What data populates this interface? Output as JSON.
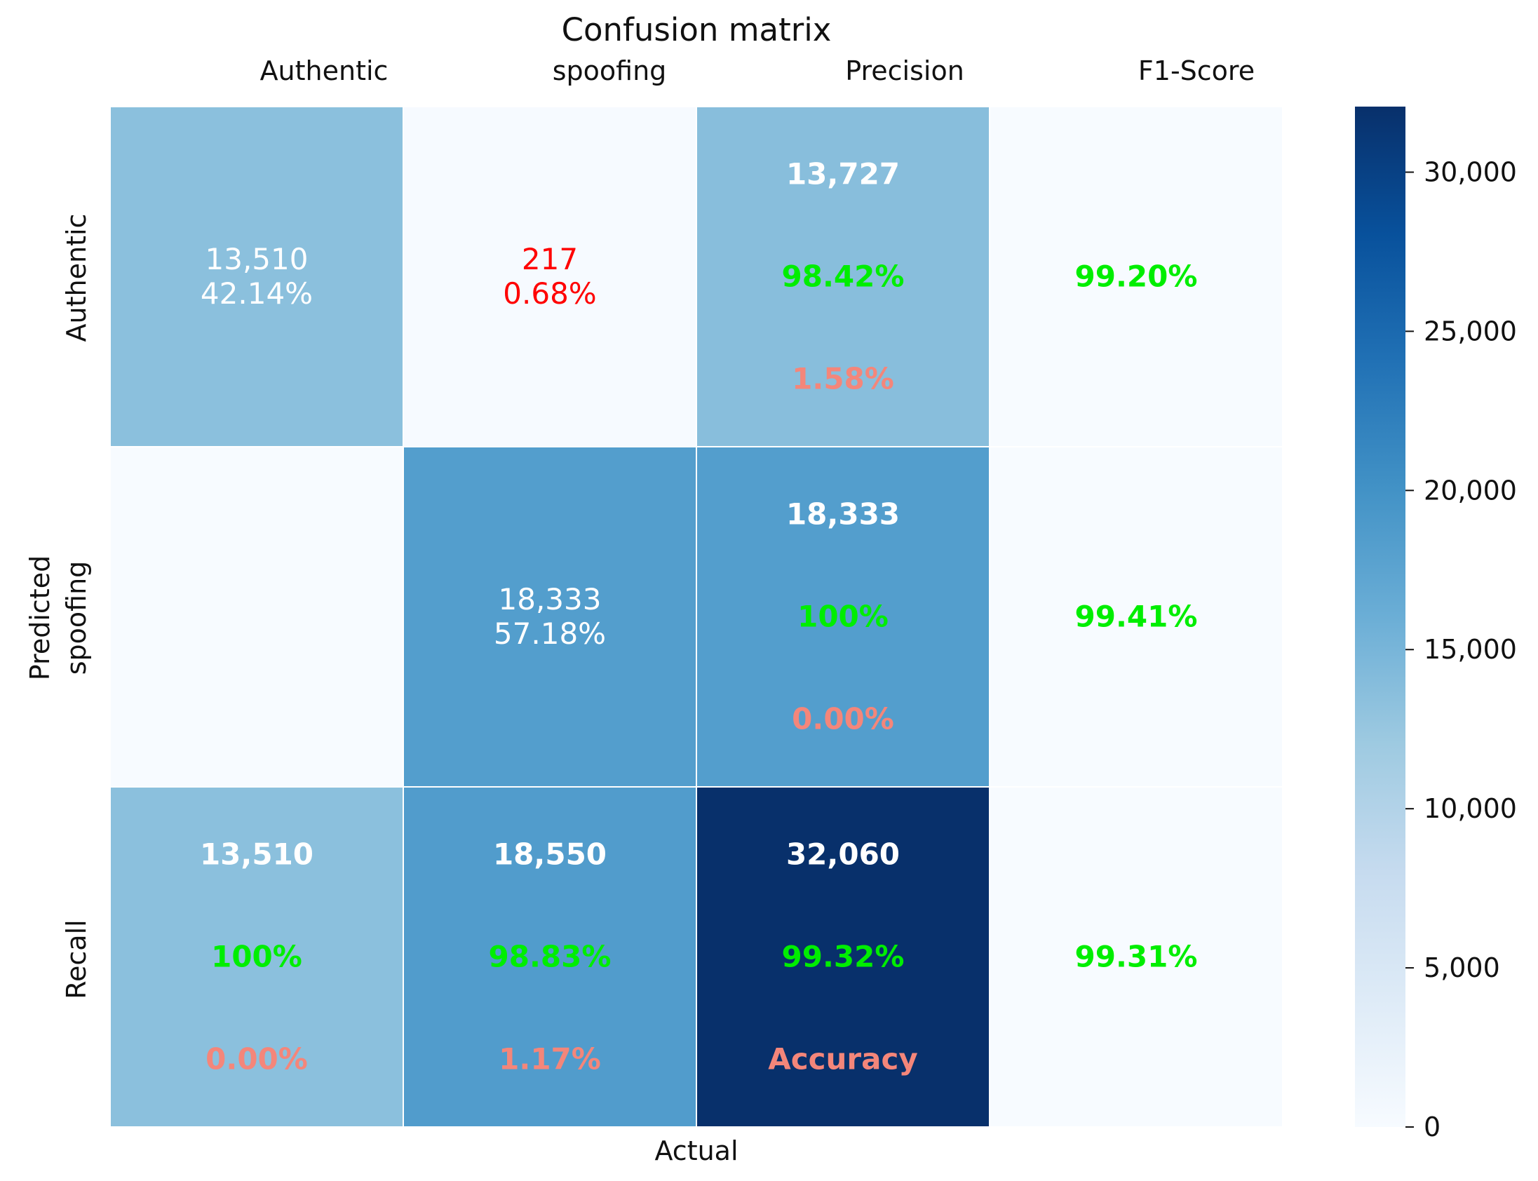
{
  "chart_data": {
    "type": "heatmap",
    "title": "Confusion matrix",
    "xlabel": "Actual",
    "ylabel": "Predicted",
    "column_labels": [
      "Authentic",
      "spoofing",
      "Precision",
      "F1-Score"
    ],
    "row_labels": [
      "Authentic",
      "spoofing",
      "Recall"
    ],
    "cells": [
      [
        {
          "value": 13510,
          "lines": [
            {
              "text": "13,510",
              "style": "plain"
            },
            {
              "text": "42.14%",
              "style": "plain"
            }
          ]
        },
        {
          "value": 217,
          "lines": [
            {
              "text": "217",
              "style": "red"
            },
            {
              "text": "0.68%",
              "style": "red"
            }
          ]
        },
        {
          "value": 13727,
          "lines": [
            {
              "text": "13,727",
              "style": "bold-white"
            },
            {
              "text": "98.42%",
              "style": "bold-green"
            },
            {
              "text": "1.58%",
              "style": "bold-salmon"
            }
          ]
        },
        {
          "value": 0,
          "lines": [
            {
              "text": "99.20%",
              "style": "bold-green"
            }
          ]
        }
      ],
      [
        {
          "value": 0,
          "lines": []
        },
        {
          "value": 18333,
          "lines": [
            {
              "text": "18,333",
              "style": "plain"
            },
            {
              "text": "57.18%",
              "style": "plain"
            }
          ]
        },
        {
          "value": 18333,
          "lines": [
            {
              "text": "18,333",
              "style": "bold-white"
            },
            {
              "text": "100%",
              "style": "bold-green"
            },
            {
              "text": "0.00%",
              "style": "bold-salmon"
            }
          ]
        },
        {
          "value": 0,
          "lines": [
            {
              "text": "99.41%",
              "style": "bold-green"
            }
          ]
        }
      ],
      [
        {
          "value": 13510,
          "lines": [
            {
              "text": "13,510",
              "style": "bold-white"
            },
            {
              "text": "100%",
              "style": "bold-green"
            },
            {
              "text": "0.00%",
              "style": "bold-salmon"
            }
          ]
        },
        {
          "value": 18550,
          "lines": [
            {
              "text": "18,550",
              "style": "bold-white"
            },
            {
              "text": "98.83%",
              "style": "bold-green"
            },
            {
              "text": "1.17%",
              "style": "bold-salmon"
            }
          ]
        },
        {
          "value": 32060,
          "lines": [
            {
              "text": "32,060",
              "style": "bold-white"
            },
            {
              "text": "99.32%",
              "style": "bold-green"
            },
            {
              "text": "Accuracy",
              "style": "bold-salmon"
            }
          ]
        },
        {
          "value": 0,
          "lines": [
            {
              "text": "99.31%",
              "style": "bold-green"
            }
          ]
        }
      ]
    ],
    "colorbar": {
      "min": 0,
      "max": 32060,
      "ticks": [
        0,
        5000,
        10000,
        15000,
        20000,
        25000,
        30000
      ],
      "tick_labels": [
        "0",
        "5,000",
        "10,000",
        "15,000",
        "20,000",
        "25,000",
        "30,000"
      ]
    },
    "colors": {
      "plain": "#ffffff",
      "red": "#ff0000",
      "bold-white": "#ffffff",
      "bold-green": "#00ee00",
      "bold-salmon": "#f4867a",
      "gridline": "#ffffff",
      "text": "#111111"
    }
  }
}
